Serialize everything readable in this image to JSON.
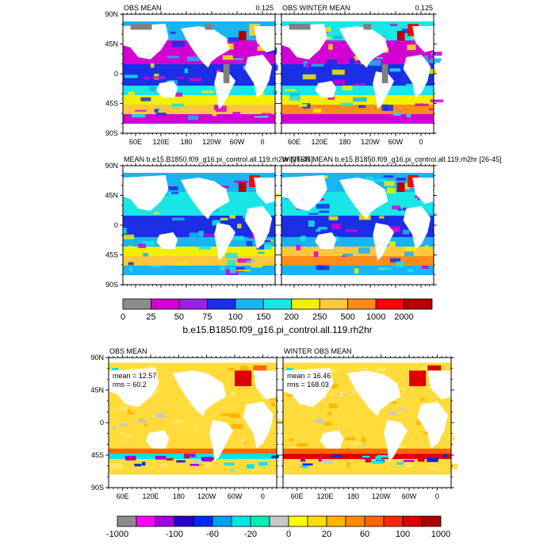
{
  "panels": [
    {
      "id": "p1",
      "title_left": "OBS MEAN",
      "title_right": "0.125",
      "stats": [],
      "scheme": "depth",
      "variant": 0,
      "y_labels": [
        "90N",
        "45N",
        "0",
        "45S",
        "90S"
      ],
      "x_labels": [
        "60E",
        "120E",
        "180",
        "120W",
        "60W",
        "0"
      ]
    },
    {
      "id": "p2",
      "title_left": "OBS WINTER MEAN",
      "title_right": "0.125",
      "stats": [],
      "scheme": "depth",
      "variant": 1,
      "y_labels": [],
      "x_labels": [
        "60E",
        "120E",
        "180",
        "120W",
        "60W",
        "0"
      ]
    },
    {
      "id": "p3",
      "title_left": "MEAN b.e15.B1850.f09_g16.pi_control.all.119.rh2hr [26-45]",
      "title_right": "",
      "stats": [],
      "scheme": "depth",
      "variant": 2,
      "y_labels": [
        "90N",
        "45N",
        "0",
        "45S",
        "90S"
      ],
      "x_labels": []
    },
    {
      "id": "p4",
      "title_left": "WINTER MEAN b.e15.B1850.f09_g16.pi_control.all.119.rh2hr [26-45]",
      "title_right": "",
      "stats": [],
      "scheme": "depth",
      "variant": 3,
      "y_labels": [],
      "x_labels": []
    },
    {
      "id": "p5",
      "title_left": "OBS MEAN",
      "title_right": "",
      "stats": [
        "mean = 12.57",
        "rms = 60.2"
      ],
      "scheme": "diff",
      "variant": 4,
      "y_labels": [
        "90N",
        "45N",
        "0",
        "45S",
        "90S"
      ],
      "x_labels": [
        "60E",
        "120E",
        "180",
        "120W",
        "60W",
        "0"
      ]
    },
    {
      "id": "p6",
      "title_left": "WINTER OBS MEAN",
      "title_right": "",
      "stats": [
        "mean = 16.46",
        "rms = 168.03"
      ],
      "scheme": "diff",
      "variant": 5,
      "y_labels": [],
      "x_labels": [
        "60E",
        "120E",
        "180",
        "120W",
        "60W",
        "0"
      ]
    }
  ],
  "colorbars": [
    {
      "id": "cb-depth",
      "labels": [
        "0",
        "25",
        "50",
        "75",
        "100",
        "150",
        "200",
        "250",
        "500",
        "1000",
        "2000"
      ],
      "colors": [
        "#8c8c8c",
        "#d200d2",
        "#9b1fe6",
        "#1a2fe6",
        "#1ab4f0",
        "#19e6e6",
        "#f0f000",
        "#ffc83c",
        "#ff8c1a",
        "#ff0000",
        "#b40000"
      ],
      "title": "b.e15.B1850.f09_g16.pi_control.all.119.rh2hr"
    },
    {
      "id": "cb-diff",
      "labels": [
        "-1000",
        "-100",
        "-60",
        "-20",
        "0",
        "20",
        "60",
        "100",
        "1000"
      ],
      "colors": [
        "#8c8c8c",
        "#ff00ff",
        "#a000dc",
        "#2a00c8",
        "#0028f0",
        "#00a0f0",
        "#00e6e6",
        "#00f0b4",
        "#c8c8c8",
        "#ffff00",
        "#ffdc00",
        "#ffb400",
        "#ff8c00",
        "#ff6400",
        "#ff2800",
        "#dc0000",
        "#aa0000"
      ],
      "title": ""
    }
  ],
  "depth_palette": {
    "land": "#808080",
    "missing": "#ffffff",
    "shelf": "#d200d2",
    "deep": "#1a2fe6",
    "mid": "#1ab4f0",
    "high": "#19e6e6",
    "yellow": "#f0f000",
    "orange": "#ffc83c",
    "deeporange": "#ff8c1a",
    "red": "#ff0000",
    "darkred": "#b40000"
  },
  "diff_palette": {
    "base": "#ffdc3c",
    "light": "#ffe86a",
    "gray": "#c8c8c8",
    "orange": "#ffb400",
    "darkorange": "#ff6400",
    "red": "#dc0000",
    "purple": "#a000dc",
    "blue": "#0028f0",
    "cyan": "#00e6e6"
  }
}
